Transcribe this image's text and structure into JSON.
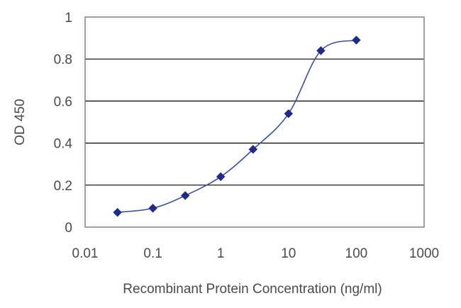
{
  "chart_data": {
    "type": "line",
    "title": "",
    "xlabel": "Recombinant Protein Concentration (ng/ml)",
    "ylabel": "OD 450",
    "xscale": "log",
    "xlim": [
      0.01,
      1000
    ],
    "ylim": [
      0,
      1
    ],
    "x_ticks": [
      "0.01",
      "0.1",
      "1",
      "10",
      "100",
      "1000"
    ],
    "y_ticks": [
      "0",
      "0.2",
      "0.4",
      "0.6",
      "0.8",
      "1"
    ],
    "grid": "horizontal",
    "legend": "none",
    "series": [
      {
        "color": "#3a4fa0",
        "marker": "diamond",
        "x": [
          0.03,
          0.1,
          0.3,
          1,
          3,
          10,
          30,
          100
        ],
        "y": [
          0.07,
          0.09,
          0.15,
          0.24,
          0.37,
          0.54,
          0.84,
          0.89
        ]
      }
    ]
  }
}
